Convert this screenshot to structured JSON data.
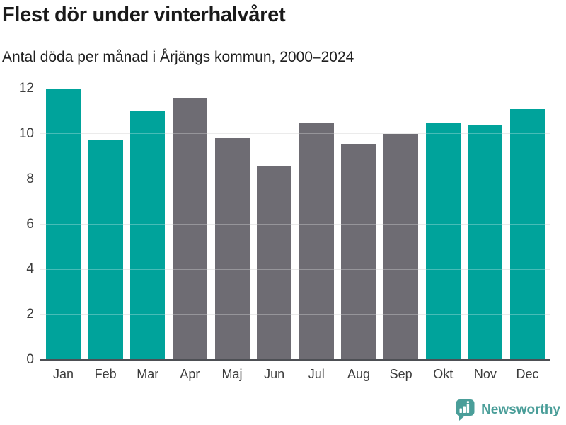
{
  "title": "Flest dör under vinterhalvåret",
  "subtitle": "Antal döda per månad i Årjängs kommun, 2000–2024",
  "chart_data": {
    "type": "bar",
    "title": "Flest dör under vinterhalvåret",
    "subtitle": "Antal döda per månad i Årjängs kommun, 2000–2024",
    "categories": [
      "Jan",
      "Feb",
      "Mar",
      "Apr",
      "Maj",
      "Jun",
      "Jul",
      "Aug",
      "Sep",
      "Okt",
      "Nov",
      "Dec"
    ],
    "values": [
      12.0,
      9.7,
      11.0,
      11.55,
      9.8,
      8.55,
      10.45,
      9.55,
      10.0,
      10.5,
      10.4,
      11.1
    ],
    "bar_colors": [
      "teal",
      "teal",
      "teal",
      "gray",
      "gray",
      "gray",
      "gray",
      "gray",
      "gray",
      "teal",
      "teal",
      "teal"
    ],
    "colors": {
      "teal": "#00a39b",
      "gray": "#6e6c73"
    },
    "xlabel": "",
    "ylabel": "",
    "ylim": [
      0,
      12
    ],
    "yticks": [
      0,
      2,
      4,
      6,
      8,
      10,
      12
    ],
    "grid": true,
    "legend": "none"
  },
  "footer": {
    "brand": "Newsworthy",
    "brand_color": "#4a9e99"
  }
}
